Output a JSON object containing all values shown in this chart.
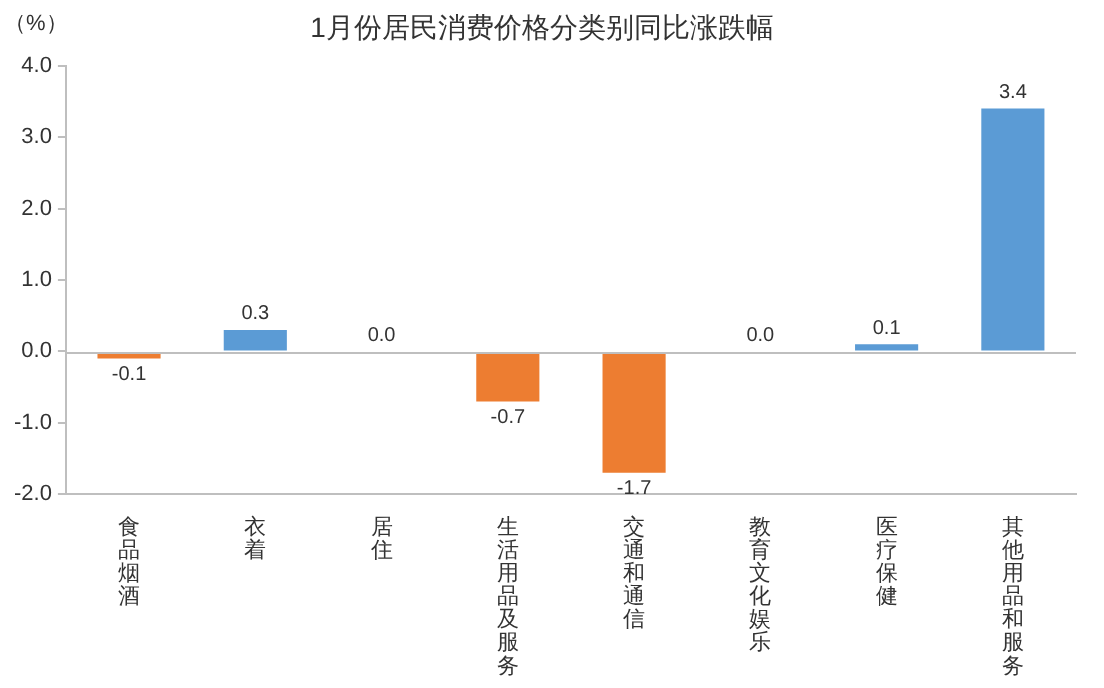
{
  "chart_data": {
    "type": "bar",
    "title": "1月份居民消费价格分类别同比涨跌幅",
    "ylabel": "（%）",
    "categories": [
      "食品烟酒",
      "衣着",
      "居住",
      "生活用品及服务",
      "交通和通信",
      "教育文化娱乐",
      "医疗保健",
      "其他用品和服务"
    ],
    "values": [
      -0.1,
      0.3,
      0.0,
      -0.7,
      -1.7,
      0.0,
      0.1,
      3.4
    ],
    "colors": [
      "#ed7d31",
      "#5b9bd5",
      "#5b9bd5",
      "#ed7d31",
      "#ed7d31",
      "#5b9bd5",
      "#5b9bd5",
      "#5b9bd5"
    ],
    "value_labels": [
      "-0.1",
      "0.3",
      "0.0",
      "-0.7",
      "-1.7",
      "0.0",
      "0.1",
      "3.4"
    ],
    "ylim": [
      -2.0,
      4.0
    ],
    "yticks": [
      {
        "value": -2,
        "label": "-2.0"
      },
      {
        "value": -1,
        "label": "-1.0"
      },
      {
        "value": 0,
        "label": "0.0"
      },
      {
        "value": 1,
        "label": "1.0"
      },
      {
        "value": 2,
        "label": "2.0"
      },
      {
        "value": 3,
        "label": "3.0"
      },
      {
        "value": 4,
        "label": "4.0"
      }
    ],
    "ref_lines": [
      {
        "axis": "y",
        "value": 0,
        "color": "#bfbfbf"
      }
    ],
    "legend": false
  }
}
